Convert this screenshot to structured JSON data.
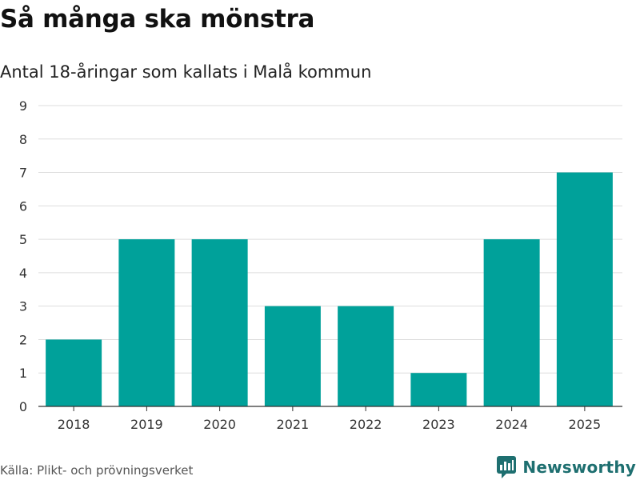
{
  "header": {
    "title": "Så många ska mönstra",
    "subtitle": "Antal 18-åringar som kallats i Malå kommun"
  },
  "footer": {
    "source": "Källa: Plikt- och prövningsverket",
    "brand": "Newsworthy"
  },
  "colors": {
    "bar": "#00a19a",
    "gridline": "#dddddd",
    "axis": "#333333",
    "brand": "#1e6f70"
  },
  "icons": {
    "brand_logo": "newsworthy-chart-bubble-icon"
  },
  "chart_data": {
    "type": "bar",
    "title": "Så många ska mönstra",
    "subtitle": "Antal 18-åringar som kallats i Malå kommun",
    "xlabel": "",
    "ylabel": "",
    "categories": [
      "2018",
      "2019",
      "2020",
      "2021",
      "2022",
      "2023",
      "2024",
      "2025"
    ],
    "values": [
      2,
      5,
      5,
      3,
      3,
      1,
      5,
      7
    ],
    "ylim": [
      0,
      9
    ],
    "yticks": [
      0,
      1,
      2,
      3,
      4,
      5,
      6,
      7,
      8,
      9
    ],
    "grid": true,
    "legend": "none"
  }
}
